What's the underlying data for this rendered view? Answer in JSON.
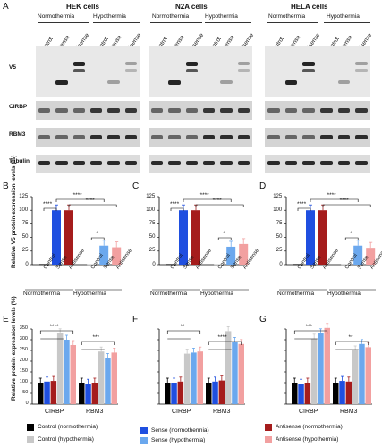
{
  "panel_letters": [
    "A",
    "B",
    "C",
    "D",
    "E",
    "F",
    "G"
  ],
  "blot_panel": {
    "cell_lines": [
      "HEK cells",
      "N2A cells",
      "HELA cells"
    ],
    "conditions": [
      "Normothermia",
      "Hypothermia"
    ],
    "lanes_normo": [
      "Control",
      "Sense",
      "Antisense"
    ],
    "lanes_hypo": [
      "Control",
      "Sense",
      "Antisense"
    ],
    "rows": [
      "V5",
      "CIRBP",
      "RBM3",
      "Tubulin"
    ]
  },
  "v5_charts": {
    "ylabel": "Relative V5 protein expression levels (%)",
    "yticks": [
      "0",
      "25",
      "50",
      "75",
      "100",
      "125"
    ],
    "xlabels": [
      "Control",
      "Sense",
      "Antisense",
      "Control",
      "Sense",
      "Antisense"
    ],
    "groups": [
      "Normothermia",
      "Hypothermia"
    ],
    "sig": [
      "****",
      "****",
      "****",
      "*"
    ]
  },
  "protein_charts": {
    "ylabel": "Relative protein expression levels (%)",
    "yticks": [
      "0",
      "50",
      "100",
      "150",
      "200",
      "250",
      "300",
      "350"
    ],
    "groups": [
      "CIRBP",
      "RBM3"
    ],
    "sig_E": [
      "****",
      "***"
    ],
    "sig_F": [
      "**",
      "****"
    ],
    "sig_G": [
      "***",
      "**"
    ]
  },
  "legend": {
    "items": [
      {
        "label": "Control (normothermia)",
        "color": "#000000"
      },
      {
        "label": "Control (hypothermia)",
        "color": "#c8c8c8"
      },
      {
        "label": "Sense (normothermia)",
        "color": "#1f4fe0"
      },
      {
        "label": "Sense (hypothermia)",
        "color": "#6ba8ee"
      },
      {
        "label": "Antisense (normothermia)",
        "color": "#a51c1c"
      },
      {
        "label": "Antisense (hypothermia)",
        "color": "#f2a0a0"
      }
    ]
  },
  "chart_data": [
    {
      "type": "bar",
      "panel": "B",
      "categories": [
        "Control",
        "Sense",
        "Antisense",
        "Control",
        "Sense",
        "Antisense"
      ],
      "values": [
        1,
        100,
        100,
        1,
        35,
        32
      ],
      "groups": [
        "Normothermia",
        "Hypothermia"
      ],
      "ylim": [
        0,
        125
      ]
    },
    {
      "type": "bar",
      "panel": "C",
      "categories": [
        "Control",
        "Sense",
        "Antisense",
        "Control",
        "Sense",
        "Antisense"
      ],
      "values": [
        1,
        100,
        100,
        1,
        33,
        38
      ],
      "groups": [
        "Normothermia",
        "Hypothermia"
      ],
      "ylim": [
        0,
        125
      ]
    },
    {
      "type": "bar",
      "panel": "D",
      "categories": [
        "Control",
        "Sense",
        "Antisense",
        "Control",
        "Sense",
        "Antisense"
      ],
      "values": [
        1,
        100,
        100,
        1,
        35,
        31
      ],
      "groups": [
        "Normothermia",
        "Hypothermia"
      ],
      "ylim": [
        0,
        125
      ]
    },
    {
      "type": "bar",
      "panel": "E",
      "categories": [
        "CIRBP",
        "RBM3"
      ],
      "ylim": [
        0,
        350
      ],
      "series": [
        {
          "name": "Control (normothermia)",
          "values": [
            100,
            100
          ]
        },
        {
          "name": "Sense (normothermia)",
          "values": [
            105,
            95
          ]
        },
        {
          "name": "Antisense (normothermia)",
          "values": [
            108,
            100
          ]
        },
        {
          "name": "Control (hypothermia)",
          "values": [
            330,
            245
          ]
        },
        {
          "name": "Sense (hypothermia)",
          "values": [
            300,
            215
          ]
        },
        {
          "name": "Antisense (hypothermia)",
          "values": [
            275,
            240
          ]
        }
      ]
    },
    {
      "type": "bar",
      "panel": "F",
      "categories": [
        "CIRBP",
        "RBM3"
      ],
      "ylim": [
        0,
        350
      ],
      "series": [
        {
          "name": "Control (normothermia)",
          "values": [
            100,
            100
          ]
        },
        {
          "name": "Sense (normothermia)",
          "values": [
            100,
            105
          ]
        },
        {
          "name": "Antisense (normothermia)",
          "values": [
            105,
            110
          ]
        },
        {
          "name": "Control (hypothermia)",
          "values": [
            235,
            340
          ]
        },
        {
          "name": "Sense (hypothermia)",
          "values": [
            240,
            290
          ]
        },
        {
          "name": "Antisense (hypothermia)",
          "values": [
            245,
            280
          ]
        }
      ]
    },
    {
      "type": "bar",
      "panel": "G",
      "categories": [
        "CIRBP",
        "RBM3"
      ],
      "ylim": [
        0,
        350
      ],
      "series": [
        {
          "name": "Control (normothermia)",
          "values": [
            100,
            100
          ]
        },
        {
          "name": "Sense (normothermia)",
          "values": [
            95,
            108
          ]
        },
        {
          "name": "Antisense (normothermia)",
          "values": [
            100,
            105
          ]
        },
        {
          "name": "Control (hypothermia)",
          "values": [
            305,
            250
          ]
        },
        {
          "name": "Sense (hypothermia)",
          "values": [
            330,
            280
          ]
        },
        {
          "name": "Antisense (hypothermia)",
          "values": [
            355,
            265
          ]
        }
      ]
    }
  ]
}
